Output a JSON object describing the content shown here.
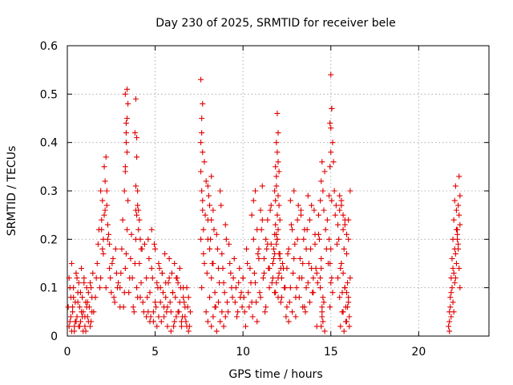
{
  "chart_data": {
    "type": "scatter",
    "title": "Day 230 of 2025, SRMTID for receiver bele",
    "xlabel": "GPS time / hours",
    "ylabel": "SRMTID / TECUs",
    "xlim": [
      0,
      24
    ],
    "ylim": [
      0,
      0.6
    ],
    "xticks": [
      0,
      5,
      10,
      15,
      20
    ],
    "yticks": [
      0,
      0.1,
      0.2,
      0.3,
      0.4,
      0.5,
      0.6
    ],
    "xtick_labels": [
      "0",
      "5",
      "10",
      "15",
      "20"
    ],
    "ytick_labels": [
      "0",
      "0.1",
      "0.2",
      "0.3",
      "0.4",
      "0.5",
      "0.6"
    ],
    "grid": true,
    "marker": "+",
    "color": "#e00000",
    "series": [
      {
        "name": "SRMTID",
        "x": [
          0.05,
          0.1,
          0.15,
          0.2,
          0.25,
          0.3,
          0.35,
          0.4,
          0.45,
          0.5,
          0.55,
          0.6,
          0.65,
          0.7,
          0.75,
          0.8,
          0.85,
          0.9,
          0.95,
          1.0,
          1.05,
          1.1,
          1.15,
          1.2,
          1.25,
          1.3,
          1.35,
          1.4,
          1.45,
          1.5,
          0.1,
          0.2,
          0.3,
          0.4,
          0.5,
          0.6,
          0.7,
          0.8,
          0.9,
          1.0,
          1.1,
          1.2,
          1.3,
          1.4,
          0.15,
          0.35,
          0.55,
          0.75,
          0.95,
          1.15,
          1.35,
          0.25,
          0.45,
          0.65,
          0.85,
          1.05,
          1.6,
          1.7,
          1.8,
          1.9,
          2.0,
          2.1,
          2.2,
          2.3,
          2.4,
          2.5,
          2.6,
          2.7,
          2.8,
          2.9,
          3.0,
          1.65,
          1.75,
          1.85,
          1.95,
          2.05,
          2.15,
          2.25,
          2.35,
          2.45,
          2.55,
          2.65,
          2.75,
          2.85,
          1.9,
          2.0,
          2.1,
          2.15,
          2.2,
          2.25,
          1.95,
          2.05,
          2.3,
          2.4,
          3.0,
          3.1,
          3.2,
          3.3,
          3.4,
          3.5,
          3.6,
          3.7,
          3.8,
          3.9,
          4.0,
          4.1,
          4.2,
          4.3,
          4.4,
          4.5,
          3.05,
          3.15,
          3.25,
          3.35,
          3.45,
          3.55,
          3.65,
          3.75,
          3.85,
          3.95,
          4.05,
          4.15,
          4.25,
          4.35,
          3.3,
          3.35,
          3.4,
          3.3,
          3.35,
          3.4,
          3.25,
          3.3,
          3.35,
          3.4,
          3.45,
          3.85,
          3.9,
          3.95,
          3.9,
          3.95,
          4.0,
          4.05,
          3.95,
          4.0,
          3.9,
          4.1,
          4.15,
          4.2,
          4.5,
          4.6,
          4.7,
          4.8,
          4.9,
          5.0,
          5.1,
          5.2,
          5.3,
          5.4,
          5.5,
          5.6,
          5.7,
          5.8,
          5.9,
          6.0,
          6.1,
          6.2,
          6.3,
          6.4,
          6.5,
          6.6,
          6.7,
          6.8,
          6.9,
          4.55,
          4.65,
          4.75,
          4.85,
          4.95,
          5.05,
          5.15,
          5.25,
          5.35,
          5.45,
          5.55,
          5.65,
          5.75,
          5.85,
          5.95,
          6.05,
          6.15,
          6.25,
          6.35,
          6.45,
          6.55,
          6.65,
          6.75,
          6.85,
          4.6,
          4.8,
          5.0,
          5.2,
          5.4,
          5.6,
          5.8,
          6.0,
          6.2,
          6.4,
          6.6,
          6.8,
          4.7,
          4.9,
          5.1,
          5.3,
          5.5,
          5.7,
          5.9,
          6.1,
          6.3,
          6.5,
          6.7,
          6.9,
          6.95,
          7.0,
          7.6,
          7.7,
          7.8,
          7.9,
          8.0,
          8.1,
          8.2,
          8.3,
          8.4,
          8.5,
          8.6,
          8.7,
          8.8,
          8.9,
          9.0,
          9.1,
          9.2,
          9.3,
          9.4,
          9.5,
          9.6,
          9.7,
          9.8,
          9.9,
          10.0,
          7.65,
          7.75,
          7.85,
          7.95,
          8.05,
          8.15,
          8.25,
          8.35,
          8.45,
          8.55,
          8.65,
          8.75,
          8.85,
          8.95,
          9.05,
          9.15,
          9.25,
          9.35,
          9.45,
          9.55,
          9.65,
          9.75,
          9.85,
          9.95,
          7.6,
          7.65,
          7.7,
          7.6,
          7.65,
          7.7,
          7.65,
          7.7,
          7.6,
          7.75,
          7.8,
          8.0,
          8.1,
          8.2,
          8.0,
          8.1,
          8.2,
          8.3,
          7.9,
          8.0,
          8.1,
          8.2,
          8.3,
          8.4,
          8.5,
          8.6,
          8.7,
          8.8,
          8.9,
          9.0,
          10.0,
          10.1,
          10.2,
          10.3,
          10.4,
          10.5,
          10.6,
          10.7,
          10.8,
          10.9,
          11.0,
          11.1,
          11.2,
          11.3,
          11.4,
          11.5,
          11.6,
          11.7,
          11.8,
          11.9,
          12.0,
          12.1,
          12.2,
          12.3,
          12.4,
          12.5,
          10.05,
          10.15,
          10.25,
          10.35,
          10.45,
          10.55,
          10.65,
          10.75,
          10.85,
          10.95,
          11.05,
          11.15,
          11.25,
          11.35,
          11.45,
          11.55,
          11.65,
          11.75,
          11.85,
          11.95,
          12.05,
          12.15,
          12.25,
          12.35,
          12.45,
          10.5,
          10.6,
          10.7,
          10.8,
          10.9,
          11.0,
          11.1,
          11.2,
          11.3,
          11.4,
          11.5,
          11.6,
          11.7,
          11.8,
          11.9,
          12.0,
          11.8,
          11.85,
          11.9,
          11.95,
          12.0,
          12.05,
          11.9,
          11.95,
          12.0,
          11.85,
          11.9,
          11.95,
          12.0,
          12.05,
          12.1,
          11.7,
          11.75,
          11.8,
          11.85,
          11.9,
          11.95,
          12.0,
          12.05,
          12.1,
          12.15,
          12.2,
          12.5,
          12.6,
          12.7,
          12.8,
          12.9,
          13.0,
          13.1,
          13.2,
          13.3,
          13.4,
          13.5,
          13.6,
          13.7,
          13.8,
          13.9,
          14.0,
          14.1,
          14.2,
          14.3,
          12.55,
          12.65,
          12.75,
          12.85,
          12.95,
          13.05,
          13.15,
          13.25,
          13.35,
          13.45,
          13.55,
          13.65,
          13.75,
          13.85,
          13.95,
          14.05,
          14.15,
          14.25,
          12.6,
          12.8,
          13.0,
          13.2,
          13.4,
          13.6,
          13.8,
          14.0,
          14.2,
          12.7,
          12.9,
          13.1,
          13.3,
          13.5,
          13.7,
          13.9,
          14.1,
          14.3,
          14.35,
          14.4,
          14.45,
          14.5,
          14.55,
          14.6,
          14.65,
          14.7,
          14.75,
          14.8,
          14.85,
          14.9,
          14.95,
          15.0,
          15.05,
          15.1,
          15.15,
          15.2,
          15.25,
          15.3,
          15.35,
          15.4,
          14.4,
          14.45,
          14.5,
          14.45,
          14.5,
          14.55,
          14.4,
          14.45,
          14.5,
          14.55,
          14.6,
          14.65,
          15.0,
          15.05,
          14.95,
          15.0,
          15.05,
          14.9,
          14.95,
          15.0,
          15.05,
          15.1,
          14.95,
          15.0,
          15.4,
          15.5,
          15.6,
          15.7,
          15.8,
          15.9,
          16.0,
          16.1,
          15.45,
          15.55,
          15.65,
          15.75,
          15.85,
          15.95,
          16.05,
          15.5,
          15.6,
          15.7,
          15.8,
          15.9,
          16.0,
          15.55,
          15.65,
          15.75,
          15.85,
          15.95,
          16.05,
          15.6,
          15.7,
          15.8,
          15.9,
          16.0,
          15.5,
          15.6,
          15.7,
          15.8,
          15.9,
          16.0,
          16.1,
          21.7,
          21.75,
          21.8,
          21.85,
          21.9,
          21.95,
          22.0,
          22.05,
          22.1,
          22.15,
          22.2,
          22.25,
          22.3,
          22.35,
          21.75,
          21.85,
          21.95,
          22.05,
          22.15,
          22.25,
          22.35,
          21.8,
          21.9,
          22.0,
          22.1,
          22.2,
          22.3,
          21.75,
          21.85,
          21.95,
          22.05,
          22.15,
          22.25,
          22.35,
          22.0,
          22.1,
          22.2,
          22.3
        ],
        "y": [
          0.06,
          0.12,
          0.03,
          0.08,
          0.15,
          0.05,
          0.1,
          0.02,
          0.07,
          0.13,
          0.04,
          0.09,
          0.11,
          0.06,
          0.03,
          0.14,
          0.08,
          0.05,
          0.12,
          0.02,
          0.07,
          0.1,
          0.04,
          0.09,
          0.06,
          0.11,
          0.03,
          0.08,
          0.13,
          0.05,
          0.02,
          0.04,
          0.06,
          0.01,
          0.03,
          0.07,
          0.02,
          0.05,
          0.01,
          0.04,
          0.06,
          0.03,
          0.02,
          0.05,
          0.1,
          0.08,
          0.12,
          0.09,
          0.11,
          0.07,
          0.1,
          0.01,
          0.03,
          0.02,
          0.04,
          0.01,
          0.08,
          0.15,
          0.22,
          0.12,
          0.18,
          0.25,
          0.1,
          0.2,
          0.14,
          0.09,
          0.16,
          0.07,
          0.13,
          0.11,
          0.06,
          0.12,
          0.19,
          0.1,
          0.24,
          0.17,
          0.26,
          0.3,
          0.21,
          0.12,
          0.15,
          0.08,
          0.18,
          0.1,
          0.3,
          0.28,
          0.35,
          0.32,
          0.37,
          0.27,
          0.22,
          0.2,
          0.23,
          0.19,
          0.1,
          0.18,
          0.06,
          0.14,
          0.22,
          0.09,
          0.16,
          0.12,
          0.05,
          0.2,
          0.08,
          0.15,
          0.11,
          0.07,
          0.19,
          0.04,
          0.13,
          0.24,
          0.09,
          0.17,
          0.28,
          0.12,
          0.21,
          0.06,
          0.15,
          0.1,
          0.26,
          0.08,
          0.18,
          0.05,
          0.35,
          0.4,
          0.45,
          0.5,
          0.42,
          0.38,
          0.3,
          0.34,
          0.44,
          0.51,
          0.48,
          0.42,
          0.49,
          0.37,
          0.31,
          0.25,
          0.27,
          0.22,
          0.41,
          0.3,
          0.26,
          0.24,
          0.2,
          0.18,
          0.12,
          0.05,
          0.09,
          0.14,
          0.03,
          0.07,
          0.11,
          0.04,
          0.1,
          0.13,
          0.06,
          0.08,
          0.02,
          0.12,
          0.05,
          0.09,
          0.15,
          0.04,
          0.11,
          0.07,
          0.03,
          0.1,
          0.06,
          0.02,
          0.08,
          0.08,
          0.16,
          0.04,
          0.12,
          0.19,
          0.06,
          0.1,
          0.14,
          0.03,
          0.09,
          0.17,
          0.05,
          0.11,
          0.07,
          0.13,
          0.02,
          0.08,
          0.12,
          0.05,
          0.1,
          0.04,
          0.07,
          0.03,
          0.06,
          0.2,
          0.22,
          0.18,
          0.15,
          0.13,
          0.11,
          0.16,
          0.09,
          0.12,
          0.14,
          0.08,
          0.1,
          0.03,
          0.05,
          0.02,
          0.07,
          0.04,
          0.06,
          0.01,
          0.03,
          0.05,
          0.02,
          0.04,
          0.01,
          0.02,
          0.05,
          0.2,
          0.28,
          0.15,
          0.32,
          0.24,
          0.18,
          0.12,
          0.26,
          0.09,
          0.21,
          0.14,
          0.3,
          0.17,
          0.11,
          0.23,
          0.07,
          0.19,
          0.13,
          0.08,
          0.16,
          0.1,
          0.05,
          0.14,
          0.09,
          0.12,
          0.1,
          0.17,
          0.25,
          0.13,
          0.29,
          0.2,
          0.15,
          0.22,
          0.06,
          0.18,
          0.11,
          0.27,
          0.14,
          0.09,
          0.2,
          0.05,
          0.15,
          0.1,
          0.12,
          0.07,
          0.04,
          0.11,
          0.08,
          0.06,
          0.34,
          0.42,
          0.48,
          0.53,
          0.45,
          0.38,
          0.3,
          0.26,
          0.4,
          0.22,
          0.36,
          0.31,
          0.27,
          0.33,
          0.2,
          0.18,
          0.24,
          0.15,
          0.05,
          0.03,
          0.08,
          0.02,
          0.04,
          0.06,
          0.01,
          0.07,
          0.03,
          0.05,
          0.02,
          0.04,
          0.12,
          0.05,
          0.18,
          0.09,
          0.14,
          0.07,
          0.2,
          0.11,
          0.03,
          0.16,
          0.08,
          0.24,
          0.13,
          0.06,
          0.19,
          0.1,
          0.27,
          0.15,
          0.09,
          0.21,
          0.12,
          0.17,
          0.08,
          0.14,
          0.1,
          0.06,
          0.08,
          0.02,
          0.15,
          0.06,
          0.11,
          0.04,
          0.13,
          0.07,
          0.17,
          0.09,
          0.22,
          0.12,
          0.05,
          0.18,
          0.14,
          0.26,
          0.11,
          0.16,
          0.09,
          0.2,
          0.13,
          0.07,
          0.15,
          0.1,
          0.04,
          0.25,
          0.28,
          0.3,
          0.22,
          0.18,
          0.26,
          0.31,
          0.16,
          0.2,
          0.24,
          0.14,
          0.19,
          0.12,
          0.17,
          0.11,
          0.08,
          0.3,
          0.35,
          0.4,
          0.46,
          0.42,
          0.34,
          0.33,
          0.38,
          0.36,
          0.28,
          0.31,
          0.25,
          0.29,
          0.27,
          0.24,
          0.15,
          0.18,
          0.21,
          0.23,
          0.19,
          0.2,
          0.22,
          0.17,
          0.16,
          0.14,
          0.12,
          0.14,
          0.18,
          0.1,
          0.22,
          0.16,
          0.08,
          0.2,
          0.12,
          0.25,
          0.15,
          0.06,
          0.18,
          0.11,
          0.24,
          0.14,
          0.09,
          0.19,
          0.13,
          0.21,
          0.17,
          0.07,
          0.23,
          0.13,
          0.19,
          0.1,
          0.27,
          0.16,
          0.12,
          0.2,
          0.05,
          0.22,
          0.15,
          0.18,
          0.09,
          0.26,
          0.14,
          0.11,
          0.03,
          0.05,
          0.04,
          0.08,
          0.06,
          0.1,
          0.07,
          0.12,
          0.02,
          0.28,
          0.3,
          0.24,
          0.26,
          0.22,
          0.29,
          0.27,
          0.21,
          0.25,
          0.2,
          0.28,
          0.32,
          0.36,
          0.3,
          0.26,
          0.34,
          0.22,
          0.18,
          0.24,
          0.15,
          0.29,
          0.44,
          0.54,
          0.47,
          0.4,
          0.36,
          0.3,
          0.25,
          0.27,
          0.19,
          0.23,
          0.1,
          0.14,
          0.06,
          0.02,
          0.04,
          0.08,
          0.12,
          0.16,
          0.05,
          0.03,
          0.07,
          0.01,
          0.43,
          0.47,
          0.35,
          0.38,
          0.28,
          0.2,
          0.15,
          0.18,
          0.12,
          0.09,
          0.06,
          0.11,
          0.12,
          0.08,
          0.15,
          0.05,
          0.1,
          0.03,
          0.07,
          0.12,
          0.2,
          0.14,
          0.09,
          0.18,
          0.06,
          0.11,
          0.04,
          0.26,
          0.28,
          0.22,
          0.24,
          0.17,
          0.2,
          0.02,
          0.05,
          0.01,
          0.03,
          0.06,
          0.02,
          0.15,
          0.13,
          0.1,
          0.09,
          0.08,
          0.29,
          0.27,
          0.25,
          0.23,
          0.21,
          0.24,
          0.3,
          0.02,
          0.05,
          0.08,
          0.12,
          0.16,
          0.2,
          0.24,
          0.28,
          0.31,
          0.26,
          0.22,
          0.18,
          0.14,
          0.1,
          0.01,
          0.04,
          0.07,
          0.11,
          0.15,
          0.19,
          0.23,
          0.06,
          0.1,
          0.13,
          0.17,
          0.21,
          0.25,
          0.03,
          0.09,
          0.14,
          0.18,
          0.22,
          0.27,
          0.29,
          0.05,
          0.12,
          0.2,
          0.33
        ]
      }
    ]
  }
}
